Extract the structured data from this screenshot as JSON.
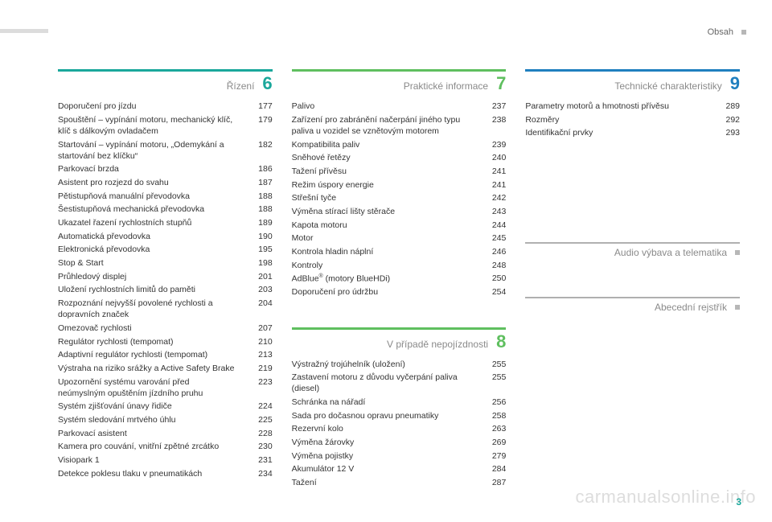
{
  "header": {
    "page_label": "Obsah"
  },
  "footer": {
    "page_number": "3",
    "watermark": "carmanualsonline.info"
  },
  "colors": {
    "teal": "#1aa79b",
    "green": "#5fbf5f",
    "blue": "#1f7fbf"
  },
  "sections": {
    "s6": {
      "number": "6",
      "title": "Řízení",
      "rule_color": "#1aa79b",
      "num_color": "#1aa79b",
      "items": [
        {
          "label": "Doporučení pro jízdu",
          "page": "177"
        },
        {
          "label": "Spouštění – vypínání motoru, mechanický klíč, klíč s dálkovým ovladačem",
          "page": "179"
        },
        {
          "label": "Startování – vypínání motoru, „Odemykání a startování bez klíčku“",
          "page": "182"
        },
        {
          "label": "Parkovací brzda",
          "page": "186"
        },
        {
          "label": "Asistent pro rozjezd do svahu",
          "page": "187"
        },
        {
          "label": "Pětistupňová manuální převodovka",
          "page": "188"
        },
        {
          "label": "Šestistupňová mechanická převodovka",
          "page": "188"
        },
        {
          "label": "Ukazatel řazení rychlostních stupňů",
          "page": "189"
        },
        {
          "label": "Automatická převodovka",
          "page": "190"
        },
        {
          "label": "Elektronická převodovka",
          "page": "195"
        },
        {
          "label": "Stop & Start",
          "page": "198"
        },
        {
          "label": "Průhledový displej",
          "page": "201"
        },
        {
          "label": "Uložení rychlostních limitů do paměti",
          "page": "203"
        },
        {
          "label": "Rozpoznání nejvyšší povolené rychlosti a dopravních značek",
          "page": "204"
        },
        {
          "label": "Omezovač rychlosti",
          "page": "207"
        },
        {
          "label": "Regulátor rychlosti (tempomat)",
          "page": "210"
        },
        {
          "label": "Adaptivní regulátor rychlosti (tempomat)",
          "page": "213"
        },
        {
          "label": "Výstraha na riziko srážky a Active Safety Brake",
          "page": "219"
        },
        {
          "label": "Upozornění systému varování před neúmyslným opuštěním jízdního pruhu",
          "page": "223"
        },
        {
          "label": "Systém zjišťování únavy řidiče",
          "page": "224"
        },
        {
          "label": "Systém sledování mrtvého úhlu",
          "page": "225"
        },
        {
          "label": "Parkovací asistent",
          "page": "228"
        },
        {
          "label": "Kamera pro couvání, vnitřní zpětné zrcátko",
          "page": "230"
        },
        {
          "label": "Visiopark 1",
          "page": "231"
        },
        {
          "label": "Detekce poklesu tlaku v pneumatikách",
          "page": "234"
        }
      ]
    },
    "s7": {
      "number": "7",
      "title": "Praktické informace",
      "rule_color": "#5fbf5f",
      "num_color": "#5fbf5f",
      "items": [
        {
          "label": "Palivo",
          "page": "237"
        },
        {
          "label": "Zařízení pro zabránění načerpání jiného typu paliva u vozidel se vznětovým motorem",
          "page": "238"
        },
        {
          "label": "Kompatibilita paliv",
          "page": "239"
        },
        {
          "label": "Sněhové řetězy",
          "page": "240"
        },
        {
          "label": "Tažení přívěsu",
          "page": "241"
        },
        {
          "label": "Režim úspory energie",
          "page": "241"
        },
        {
          "label": "Střešní tyče",
          "page": "242"
        },
        {
          "label": "Výměna stírací lišty stěrače",
          "page": "243"
        },
        {
          "label": "Kapota motoru",
          "page": "244"
        },
        {
          "label": "Motor",
          "page": "245"
        },
        {
          "label": "Kontrola hladin náplní",
          "page": "246"
        },
        {
          "label": "Kontroly",
          "page": "248"
        },
        {
          "label": "AdBlue® (motory BlueHDi)",
          "page": "250",
          "sup": true
        },
        {
          "label": "Doporučení pro údržbu",
          "page": "254"
        }
      ]
    },
    "s8": {
      "number": "8",
      "title": "V případě nepojízdnosti",
      "rule_color": "#5fbf5f",
      "num_color": "#5fbf5f",
      "items": [
        {
          "label": "Výstražný trojúhelník (uložení)",
          "page": "255"
        },
        {
          "label": "Zastavení motoru z důvodu vyčerpání paliva (diesel)",
          "page": "255"
        },
        {
          "label": "Schránka na nářadí",
          "page": "256"
        },
        {
          "label": "Sada pro dočasnou opravu pneumatiky",
          "page": "258"
        },
        {
          "label": "Rezervní kolo",
          "page": "263"
        },
        {
          "label": "Výměna žárovky",
          "page": "269"
        },
        {
          "label": "Výměna pojistky",
          "page": "279"
        },
        {
          "label": "Akumulátor 12 V",
          "page": "284"
        },
        {
          "label": "Tažení",
          "page": "287"
        }
      ]
    },
    "s9": {
      "number": "9",
      "title": "Technické charakteristiky",
      "rule_color": "#1f7fbf",
      "num_color": "#1f7fbf",
      "items": [
        {
          "label": "Parametry motorů a hmotnosti přívěsu",
          "page": "289"
        },
        {
          "label": "Rozměry",
          "page": "292"
        },
        {
          "label": "Identifikační prvky",
          "page": "293"
        }
      ]
    },
    "extra1": {
      "title": "Audio výbava a telematika"
    },
    "extra2": {
      "title": "Abecední rejstřík"
    }
  }
}
